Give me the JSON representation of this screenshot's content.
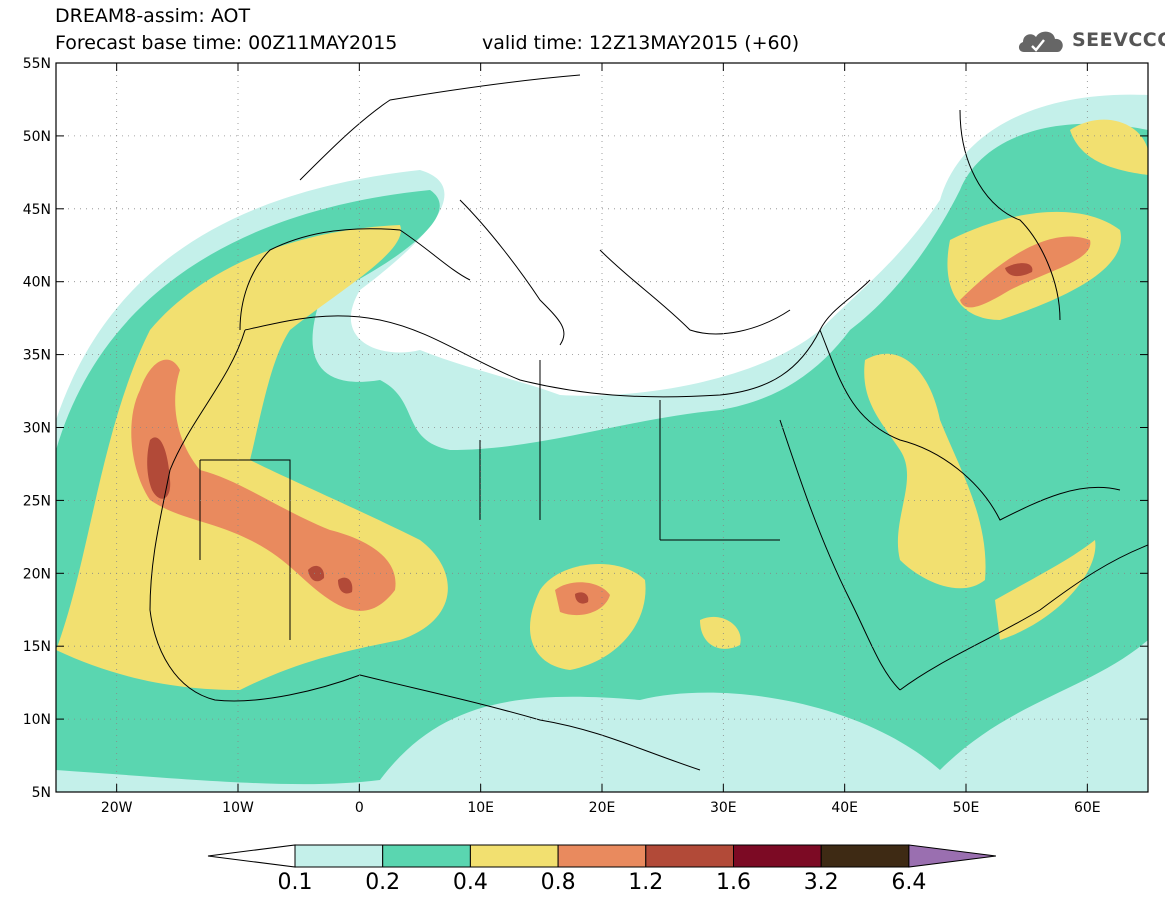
{
  "header": {
    "title": "DREAM8-assim: AOT",
    "base_time": "Forecast base time: 00Z11MAY2015",
    "valid_time": "valid time: 12Z13MAY2015 (+60)",
    "logo_text": "SEEVCCC"
  },
  "map": {
    "lon_range": [
      -25,
      65
    ],
    "lat_range": [
      5,
      55
    ],
    "lon_ticks": [
      {
        "value": -20,
        "label": "20W"
      },
      {
        "value": -10,
        "label": "10W"
      },
      {
        "value": 0,
        "label": "0"
      },
      {
        "value": 10,
        "label": "10E"
      },
      {
        "value": 20,
        "label": "20E"
      },
      {
        "value": 30,
        "label": "30E"
      },
      {
        "value": 40,
        "label": "40E"
      },
      {
        "value": 50,
        "label": "50E"
      },
      {
        "value": 60,
        "label": "60E"
      }
    ],
    "lat_ticks": [
      {
        "value": 55,
        "label": "55N"
      },
      {
        "value": 50,
        "label": "50N"
      },
      {
        "value": 45,
        "label": "45N"
      },
      {
        "value": 40,
        "label": "40N"
      },
      {
        "value": 35,
        "label": "35N"
      },
      {
        "value": 30,
        "label": "30N"
      },
      {
        "value": 25,
        "label": "25N"
      },
      {
        "value": 20,
        "label": "20N"
      },
      {
        "value": 15,
        "label": "15N"
      },
      {
        "value": 10,
        "label": "10N"
      },
      {
        "value": 5,
        "label": "5N"
      }
    ]
  },
  "colorbar": {
    "levels": [
      "0.1",
      "0.2",
      "0.4",
      "0.8",
      "1.2",
      "1.6",
      "3.2",
      "6.4"
    ],
    "colors": [
      "#c4f0ea",
      "#5ad6b0",
      "#f2e070",
      "#e98a5e",
      "#b24a38",
      "#7c0a24",
      "#3e2a14"
    ],
    "under_color": "#ffffff",
    "over_color": "#9a6fb0"
  },
  "dust": {
    "zones": [
      {
        "level": 1,
        "color": "#c4f0ea"
      },
      {
        "level": 2,
        "color": "#5ad6b0"
      },
      {
        "level": 3,
        "color": "#f2e070"
      },
      {
        "level": 4,
        "color": "#e98a5e"
      },
      {
        "level": 5,
        "color": "#b24a38"
      }
    ]
  }
}
